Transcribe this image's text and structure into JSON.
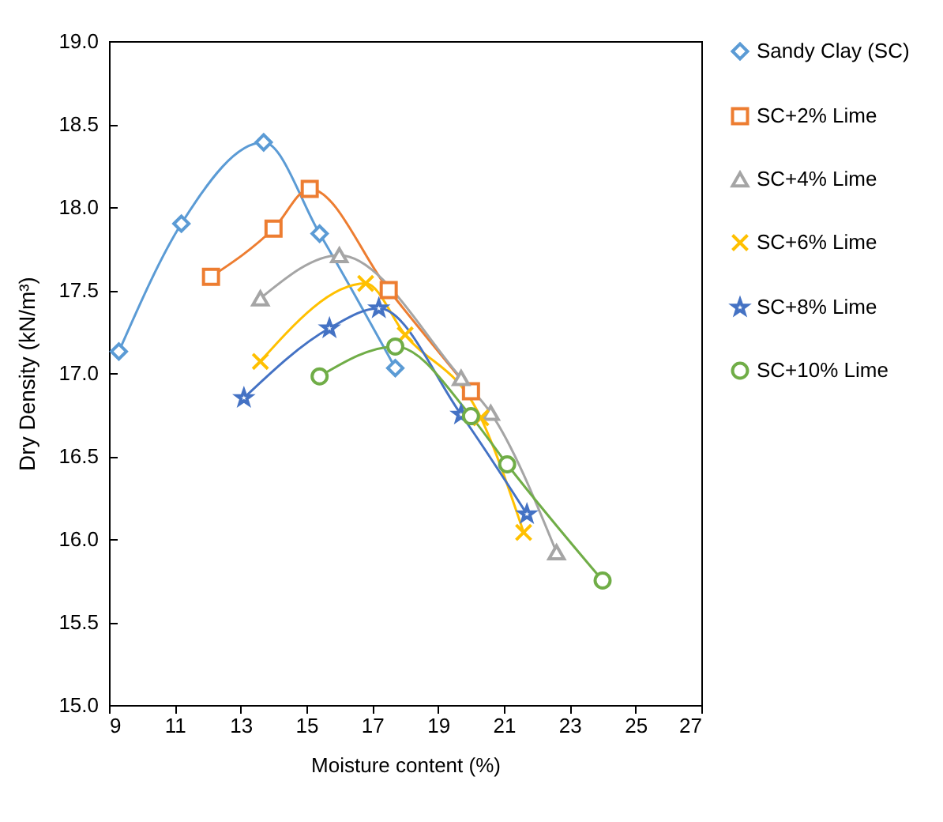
{
  "chart_data": {
    "type": "line",
    "xlabel": "Moisture content (%)",
    "ylabel": "Dry Density (kN/m³)",
    "xlim": [
      9,
      27
    ],
    "xticks": [
      9,
      11,
      13,
      15,
      17,
      19,
      21,
      23,
      25,
      27
    ],
    "ylim": [
      15,
      19
    ],
    "yticks": [
      {
        "value": 15,
        "label": "15.0"
      },
      {
        "value": 15.5,
        "label": "15.5"
      },
      {
        "value": 16,
        "label": "16.0"
      },
      {
        "value": 16.5,
        "label": "16.5"
      },
      {
        "value": 17,
        "label": "17.0"
      },
      {
        "value": 17.5,
        "label": "17.5"
      },
      {
        "value": 18,
        "label": "18.0"
      },
      {
        "value": 18.5,
        "label": "18.5"
      },
      {
        "value": 19,
        "label": "19.0"
      }
    ],
    "grid": false,
    "legend": "right",
    "line_style": "solid",
    "series": [
      {
        "name": "Sandy Clay (SC)",
        "color": "#5b9bd5",
        "marker": "diamond",
        "x": [
          9.3,
          11.2,
          13.7,
          15.4,
          17.7
        ],
        "values": [
          17.13,
          17.9,
          18.39,
          17.84,
          17.03
        ]
      },
      {
        "name": "SC+2% Lime",
        "color": "#ed7d31",
        "marker": "square",
        "x": [
          12.1,
          14.0,
          15.1,
          17.5,
          20.0
        ],
        "values": [
          17.58,
          17.87,
          18.11,
          17.5,
          16.89
        ]
      },
      {
        "name": "SC+4% Lime",
        "color": "#a5a5a5",
        "marker": "triangle",
        "x": [
          13.6,
          16.0,
          19.7,
          20.6,
          22.6
        ],
        "values": [
          17.45,
          17.71,
          16.97,
          16.76,
          15.92
        ]
      },
      {
        "name": "SC+6% Lime",
        "color": "#ffc000",
        "marker": "cross",
        "x": [
          13.6,
          16.8,
          18.0,
          20.3,
          21.6
        ],
        "values": [
          17.07,
          17.54,
          17.23,
          16.73,
          16.04
        ]
      },
      {
        "name": "SC+8% Lime",
        "color": "#4472c4",
        "marker": "star",
        "x": [
          13.1,
          15.7,
          17.2,
          19.7,
          21.7
        ],
        "values": [
          16.85,
          17.27,
          17.39,
          16.75,
          16.15
        ]
      },
      {
        "name": "SC+10% Lime",
        "color": "#70ad47",
        "marker": "circle",
        "x": [
          15.4,
          17.7,
          20.0,
          21.1,
          24.0
        ],
        "values": [
          16.98,
          17.16,
          16.74,
          16.45,
          15.75
        ]
      }
    ]
  }
}
